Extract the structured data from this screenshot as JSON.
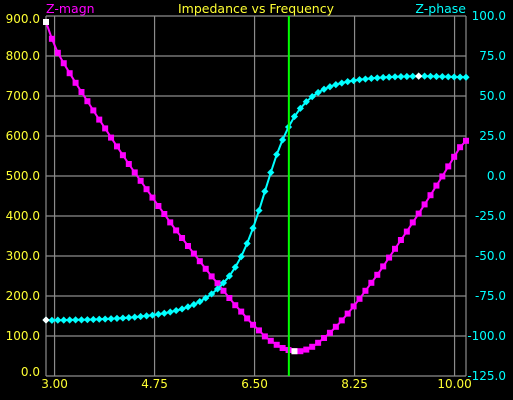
{
  "chart_data": {
    "type": "line",
    "title": "Impedance vs Frequency",
    "left_axis_label": "Z-magn",
    "right_axis_label": "Z-phase",
    "x_range": [
      2.85,
      10.2
    ],
    "x_ticks": [
      "3.00",
      "4.75",
      "6.50",
      "8.25",
      "10.00"
    ],
    "y_left_range": [
      0,
      900
    ],
    "y_left_ticks": [
      "0.0",
      "100.0",
      "200.0",
      "300.0",
      "400.0",
      "500.0",
      "600.0",
      "700.0",
      "800.0",
      "900.0"
    ],
    "y_right_range": [
      -125,
      100
    ],
    "y_right_ticks": [
      "100.0",
      "75.0",
      "50.0",
      "25.0",
      "0.0",
      "-25.0",
      "-50.0",
      "-75.0",
      "-100.0",
      "-125.0"
    ],
    "grid": true,
    "cursor_x": 7.1,
    "series": [
      {
        "name": "Z-magn",
        "axis": "left",
        "color": "#ff00ff",
        "marker": "square",
        "x_start": 2.85,
        "x_end": 10.2,
        "values": [
          885,
          843,
          808,
          782,
          757,
          733,
          710,
          687,
          664,
          641,
          619,
          596,
          574,
          552,
          530,
          509,
          488,
          467,
          446,
          425,
          405,
          384,
          364,
          345,
          325,
          306,
          287,
          268,
          249,
          232,
          213,
          195,
          177,
          161,
          144,
          128,
          114,
          99,
          88,
          78,
          70,
          65,
          62,
          62,
          66,
          73,
          83,
          95,
          108,
          123,
          139,
          156,
          174,
          193,
          213,
          233,
          253,
          274,
          296,
          318,
          340,
          361,
          384,
          406,
          429,
          452,
          476,
          499,
          524,
          548,
          572,
          588
        ]
      },
      {
        "name": "Z-phase",
        "axis": "right",
        "color": "#00ffff",
        "marker": "diamond",
        "x_start": 2.85,
        "x_end": 10.2,
        "values": [
          -90,
          -90.2,
          -90.1,
          -90.1,
          -90,
          -89.9,
          -89.9,
          -89.8,
          -89.7,
          -89.5,
          -89.4,
          -89.2,
          -89,
          -88.8,
          -88.5,
          -88.2,
          -87.8,
          -87.4,
          -87,
          -86.4,
          -85.8,
          -85,
          -84.1,
          -83.1,
          -81.8,
          -80.3,
          -78.5,
          -76.3,
          -73.7,
          -70.6,
          -66.8,
          -62.5,
          -57,
          -50.4,
          -42.2,
          -32.6,
          -21.6,
          -9.6,
          2.2,
          13.4,
          22.6,
          30.6,
          37.2,
          42.3,
          46.4,
          49.6,
          52.2,
          54.2,
          55.8,
          57.1,
          58.1,
          59,
          59.6,
          60.2,
          60.6,
          61,
          61.3,
          61.6,
          61.8,
          62,
          62.1,
          62.2,
          62.3,
          62.4,
          62.4,
          62.3,
          62.2,
          62.1,
          62,
          61.9,
          61.8,
          61.7
        ]
      }
    ]
  }
}
